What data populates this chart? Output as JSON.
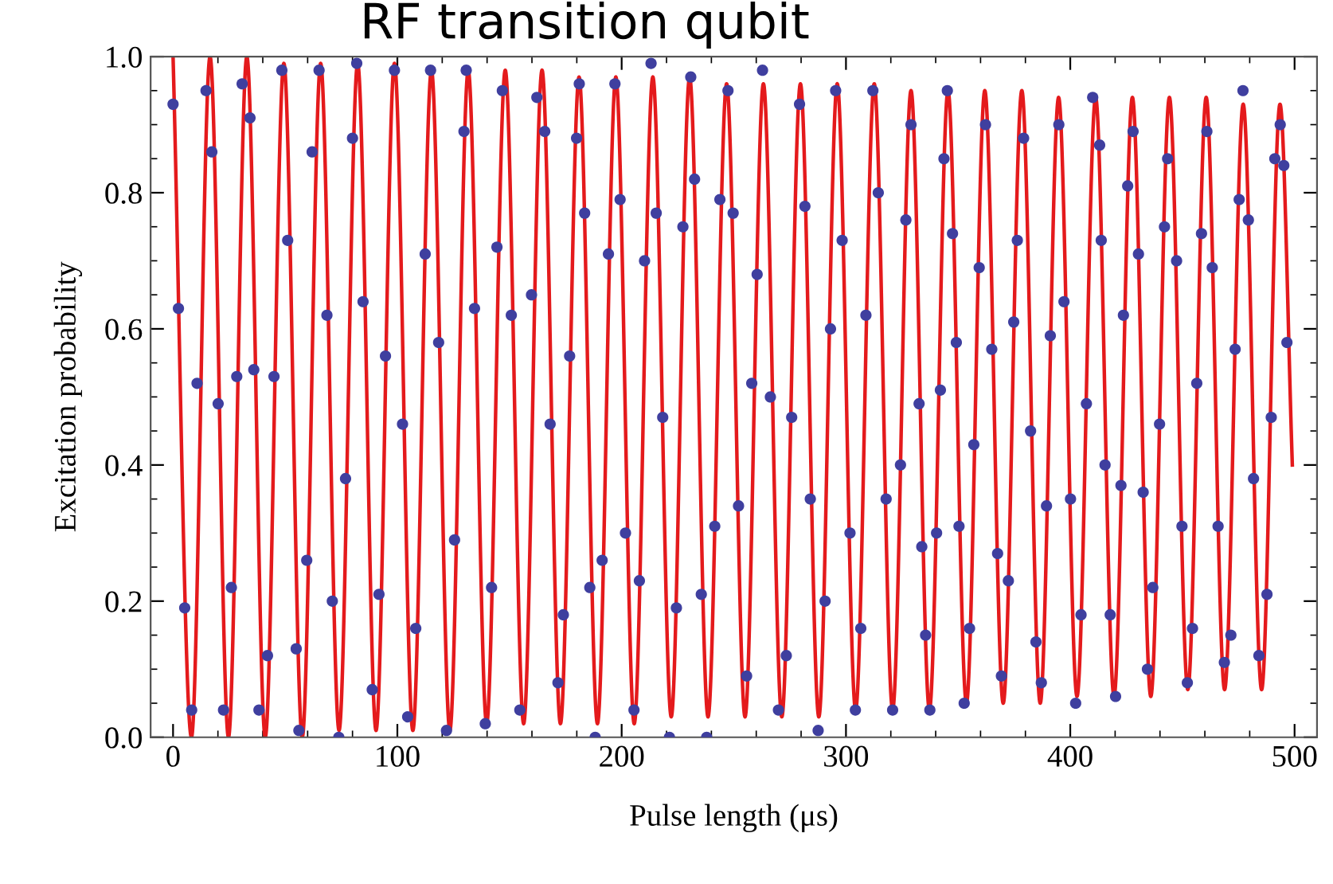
{
  "chart_data": {
    "type": "scatter",
    "title": "RF transition qubit",
    "xlabel": "Pulse length (μs)",
    "ylabel": "Excitation probability",
    "xlim": [
      -10,
      510
    ],
    "ylim": [
      0,
      1
    ],
    "xticks": [
      0,
      100,
      200,
      300,
      400,
      500
    ],
    "yticks": [
      {
        "value": 0,
        "label": "0.0"
      },
      {
        "value": 0.2,
        "label": "0.2"
      },
      {
        "value": 0.4,
        "label": "0.4"
      },
      {
        "value": 0.6,
        "label": "0.6"
      },
      {
        "value": 0.8,
        "label": "0.8"
      },
      {
        "value": 1,
        "label": "1.0"
      }
    ],
    "grid": false,
    "legend": false,
    "series": [
      {
        "type": "line",
        "color": "#e41a1c",
        "line_style": "solid",
        "marker": "none",
        "x": [
          0,
          8.2,
          16.5,
          24.7,
          32.9,
          41.1,
          49.4,
          57.6,
          65.8,
          74.0,
          82.3,
          90.5,
          98.7,
          106.9,
          115.2,
          123.4,
          131.6,
          139.8,
          148.1,
          156.3,
          164.5,
          172.7,
          181.0,
          189.2,
          197.4,
          205.6,
          213.9,
          222.1,
          230.3,
          238.5,
          246.8,
          255.0,
          263.2,
          271.4,
          279.7,
          287.9,
          296.1,
          304.3,
          312.6,
          320.8,
          329.0,
          337.2,
          345.5,
          353.7,
          361.9,
          370.1,
          378.4,
          386.6,
          394.8,
          403.0,
          411.3,
          419.5,
          427.7,
          435.9,
          444.2,
          452.4,
          460.6,
          468.8,
          477.1,
          485.3,
          493.5,
          499
        ],
        "values": [
          1.0,
          0.0,
          1.0,
          0.0,
          1.0,
          0.0,
          0.99,
          0.0,
          0.99,
          0.01,
          0.99,
          0.01,
          0.99,
          0.01,
          0.98,
          0.01,
          0.98,
          0.02,
          0.98,
          0.02,
          0.98,
          0.02,
          0.97,
          0.02,
          0.97,
          0.02,
          0.97,
          0.03,
          0.97,
          0.03,
          0.96,
          0.03,
          0.96,
          0.03,
          0.96,
          0.03,
          0.96,
          0.04,
          0.96,
          0.04,
          0.95,
          0.04,
          0.95,
          0.05,
          0.95,
          0.05,
          0.95,
          0.05,
          0.94,
          0.06,
          0.94,
          0.06,
          0.94,
          0.06,
          0.94,
          0.07,
          0.94,
          0.07,
          0.93,
          0.07,
          0.93,
          0.4
        ]
      },
      {
        "color": "#3f3f9f",
        "marker": "circle",
        "x": [
          0.0,
          2.4,
          5.2,
          8.3,
          10.7,
          14.7,
          17.3,
          20.1,
          22.5,
          26.0,
          28.4,
          30.8,
          34.3,
          36.0,
          38.3,
          42.1,
          45.0,
          48.5,
          51.1,
          54.9,
          56.1,
          59.6,
          62.0,
          65.1,
          68.6,
          71.0,
          73.9,
          76.9,
          80.0,
          81.9,
          84.7,
          88.8,
          91.8,
          94.7,
          98.7,
          102.3,
          104.6,
          108.2,
          112.4,
          114.8,
          118.4,
          121.9,
          125.5,
          129.7,
          130.7,
          134.4,
          139.2,
          142.0,
          144.4,
          146.8,
          150.8,
          154.6,
          159.8,
          162.2,
          165.7,
          168.1,
          171.6,
          174.0,
          176.8,
          179.9,
          181.1,
          183.5,
          185.8,
          188.2,
          191.3,
          194.1,
          197.0,
          199.3,
          201.7,
          205.5,
          207.9,
          210.2,
          213.1,
          215.4,
          218.3,
          221.3,
          224.4,
          227.3,
          230.8,
          232.5,
          235.5,
          237.9,
          241.5,
          243.8,
          247.4,
          249.7,
          252.1,
          255.7,
          258.0,
          260.4,
          262.8,
          266.3,
          269.9,
          273.4,
          275.8,
          279.3,
          281.7,
          284.1,
          287.6,
          290.7,
          293.1,
          295.4,
          298.3,
          301.8,
          304.2,
          306.6,
          308.9,
          312.0,
          314.4,
          317.9,
          320.8,
          324.3,
          326.7,
          329.0,
          332.6,
          333.8,
          335.5,
          337.4,
          340.4,
          342.1,
          343.7,
          345.2,
          347.5,
          349.2,
          350.4,
          352.7,
          355.1,
          357.0,
          359.4,
          362.2,
          365.0,
          367.6,
          369.3,
          372.4,
          374.8,
          376.4,
          379.2,
          382.3,
          384.7,
          387.1,
          389.4,
          391.1,
          394.9,
          397.2,
          400.1,
          402.4,
          404.8,
          407.2,
          410.0,
          413.1,
          413.8,
          415.5,
          417.8,
          420.2,
          422.6,
          423.7,
          425.6,
          428.0,
          430.4,
          432.5,
          434.4,
          436.8,
          439.8,
          442.0,
          443.4,
          447.4,
          449.8,
          452.2,
          454.5,
          456.4,
          458.5,
          460.9,
          463.3,
          465.9,
          468.7,
          471.6,
          473.5,
          475.3,
          477.0,
          479.4,
          481.7,
          484.1,
          487.7,
          489.6,
          491.2,
          493.6,
          495.2,
          496.6
        ],
        "values": [
          0.93,
          0.63,
          0.19,
          0.04,
          0.52,
          0.95,
          0.86,
          0.49,
          0.04,
          0.22,
          0.53,
          0.96,
          0.91,
          0.54,
          0.04,
          0.12,
          0.53,
          0.98,
          0.73,
          0.13,
          0.01,
          0.26,
          0.86,
          0.98,
          0.62,
          0.2,
          0.0,
          0.38,
          0.88,
          0.99,
          0.64,
          0.07,
          0.21,
          0.56,
          0.98,
          0.46,
          0.03,
          0.16,
          0.71,
          0.98,
          0.58,
          0.01,
          0.29,
          0.89,
          0.98,
          0.63,
          0.02,
          0.22,
          0.72,
          0.95,
          0.62,
          0.04,
          0.65,
          0.94,
          0.89,
          0.46,
          0.08,
          0.18,
          0.56,
          0.88,
          0.96,
          0.77,
          0.22,
          0.0,
          0.26,
          0.71,
          0.96,
          0.79,
          0.3,
          0.04,
          0.23,
          0.7,
          0.99,
          0.77,
          0.47,
          0.0,
          0.19,
          0.75,
          0.97,
          0.82,
          0.21,
          0.0,
          0.31,
          0.79,
          0.95,
          0.77,
          0.34,
          0.09,
          0.52,
          0.68,
          0.98,
          0.5,
          0.04,
          0.12,
          0.47,
          0.93,
          0.78,
          0.35,
          0.01,
          0.2,
          0.6,
          0.95,
          0.73,
          0.3,
          0.04,
          0.16,
          0.62,
          0.95,
          0.8,
          0.35,
          0.04,
          0.4,
          0.76,
          0.9,
          0.49,
          0.28,
          0.15,
          0.04,
          0.3,
          0.51,
          0.85,
          0.95,
          0.74,
          0.58,
          0.31,
          0.05,
          0.16,
          0.43,
          0.69,
          0.9,
          0.57,
          0.27,
          0.09,
          0.23,
          0.61,
          0.73,
          0.88,
          0.45,
          0.14,
          0.08,
          0.34,
          0.59,
          0.9,
          0.64,
          0.35,
          0.05,
          0.18,
          0.49,
          0.94,
          0.87,
          0.73,
          0.4,
          0.18,
          0.06,
          0.37,
          0.62,
          0.81,
          0.89,
          0.71,
          0.36,
          0.1,
          0.22,
          0.46,
          0.75,
          0.85,
          0.7,
          0.31,
          0.08,
          0.16,
          0.52,
          0.74,
          0.89,
          0.69,
          0.31,
          0.11,
          0.15,
          0.57,
          0.79,
          0.95,
          0.76,
          0.38,
          0.12,
          0.21,
          0.47,
          0.85,
          0.9,
          0.84,
          0.58
        ]
      }
    ]
  }
}
